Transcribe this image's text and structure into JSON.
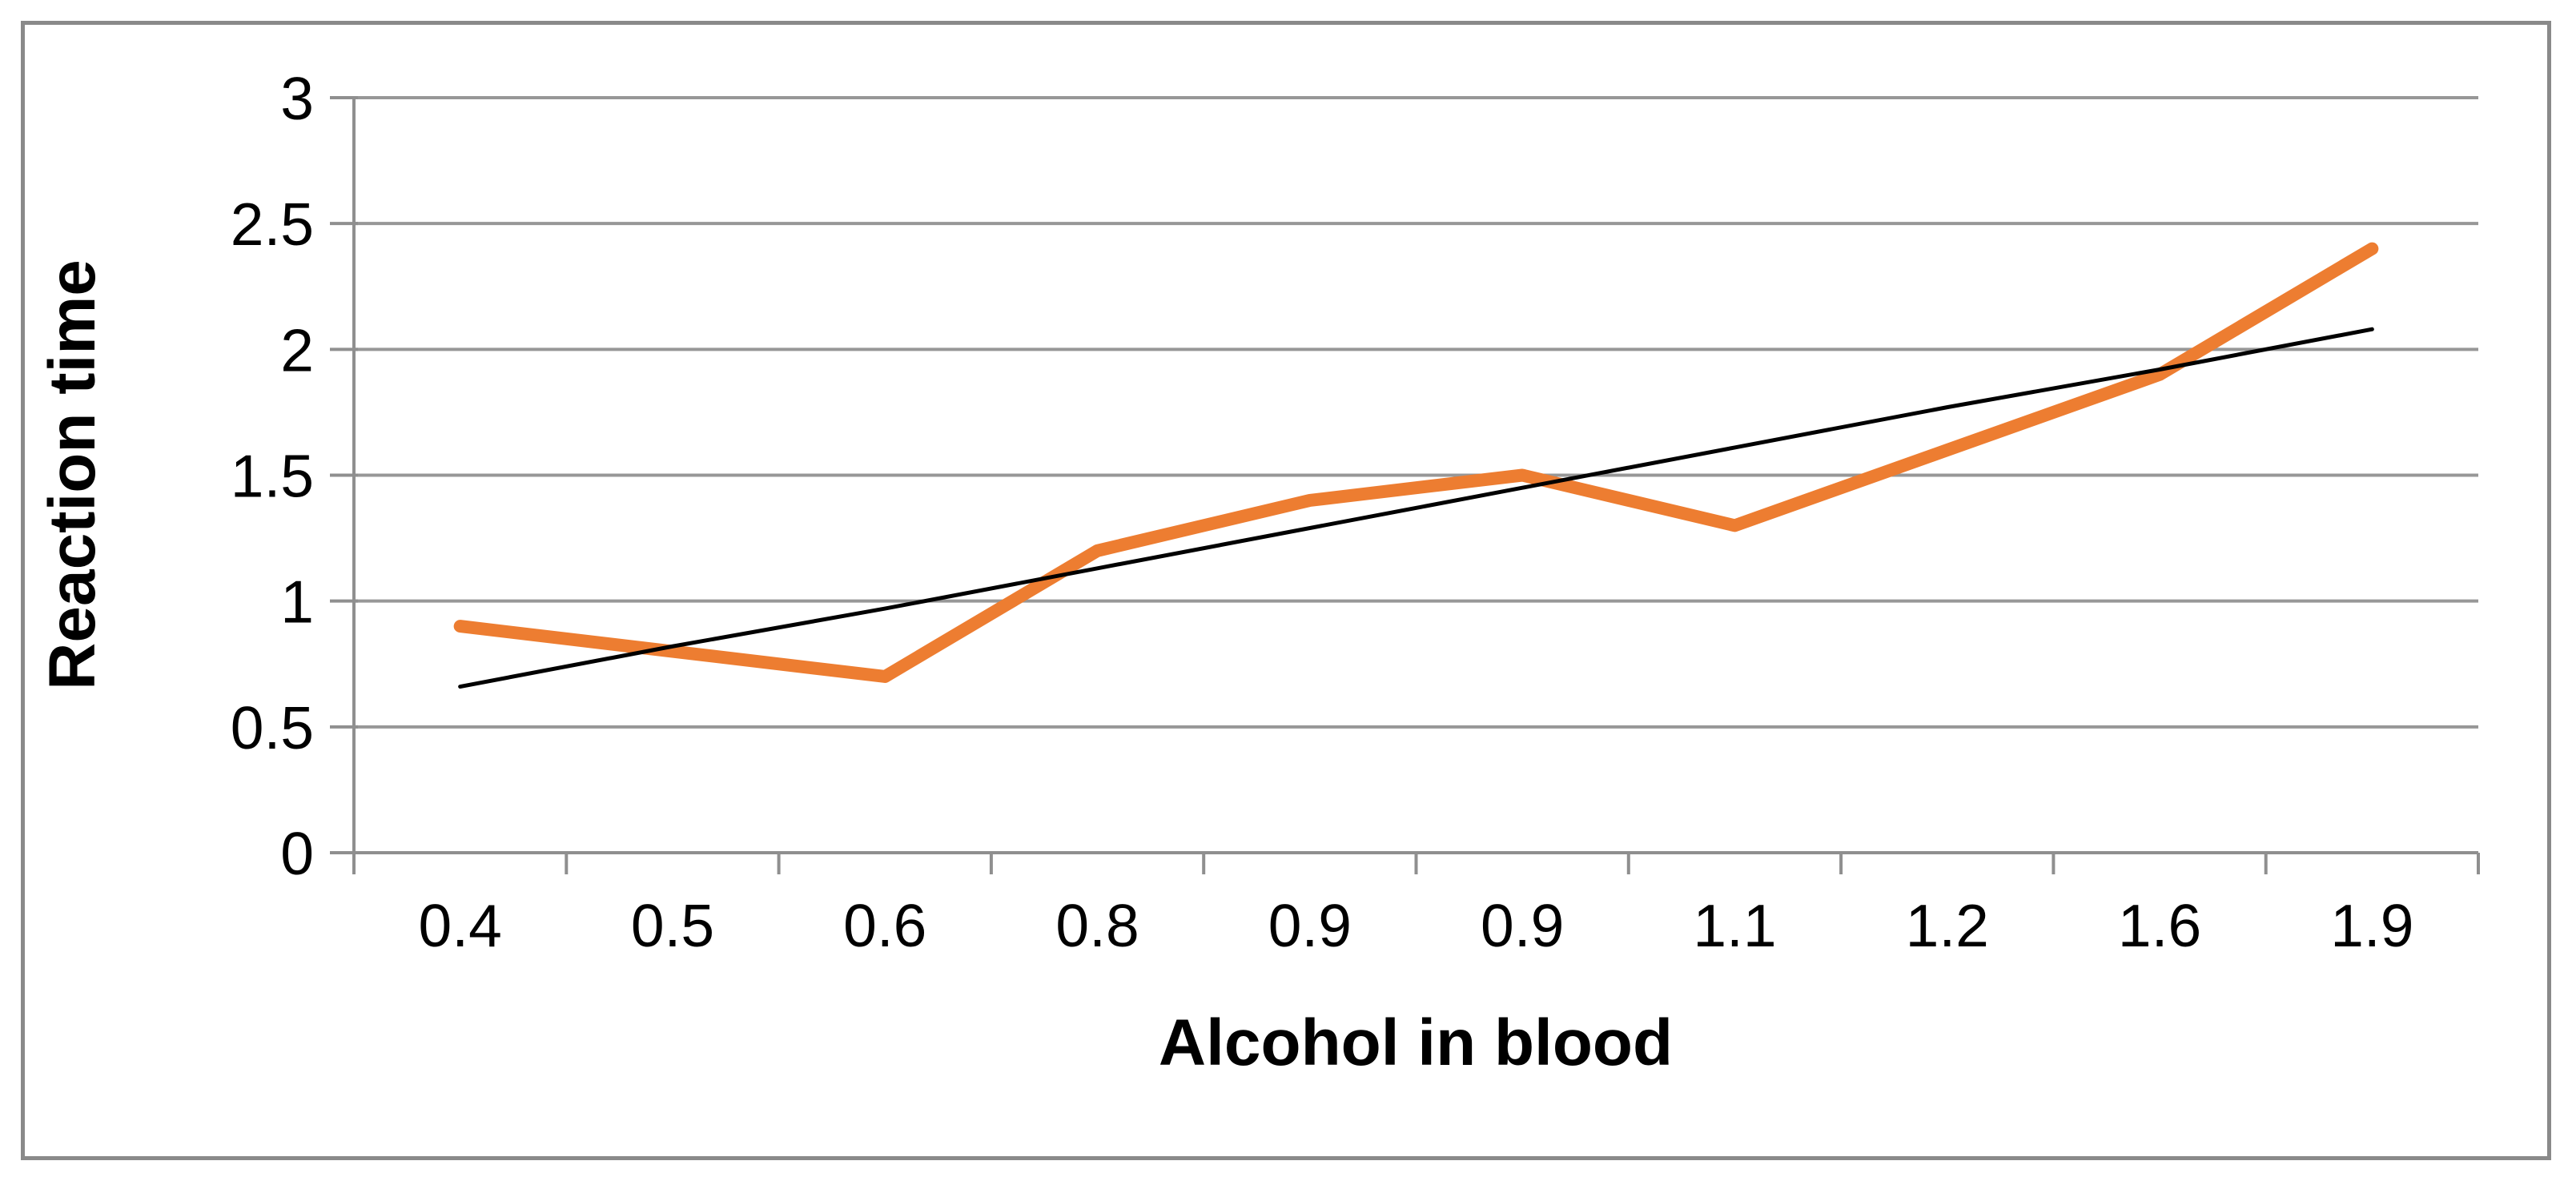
{
  "figure": {
    "background": "#FFFFFF",
    "border_color": "#8A8A8A"
  },
  "chart_data": {
    "type": "line",
    "title": "",
    "xlabel": "Alcohol in blood",
    "ylabel": "Reaction time",
    "categories": [
      "0.4",
      "0.5",
      "0.6",
      "0.8",
      "0.9",
      "0.9",
      "1.1",
      "1.2",
      "1.6",
      "1.9"
    ],
    "series": [
      {
        "name": "Reaction time",
        "color": "#ED7D31",
        "values": [
          0.9,
          0.8,
          0.7,
          1.2,
          1.4,
          1.5,
          1.3,
          1.6,
          1.9,
          2.4
        ]
      },
      {
        "name": "Linear trendline",
        "color": "#000000",
        "values": [
          0.66,
          0.82,
          0.97,
          1.13,
          1.29,
          1.45,
          1.61,
          1.77,
          1.92,
          2.08
        ]
      }
    ],
    "ylim": [
      0,
      3
    ],
    "ytick_step": 0.5,
    "yticks": [
      "3",
      "2.5",
      "2",
      "1.5",
      "1",
      "0.5",
      "0"
    ],
    "grid": "horizontal-only",
    "legend_position": "none",
    "gridline_color": "#979797",
    "axis_color": "#8F8F8F",
    "text_color": "#000000"
  }
}
